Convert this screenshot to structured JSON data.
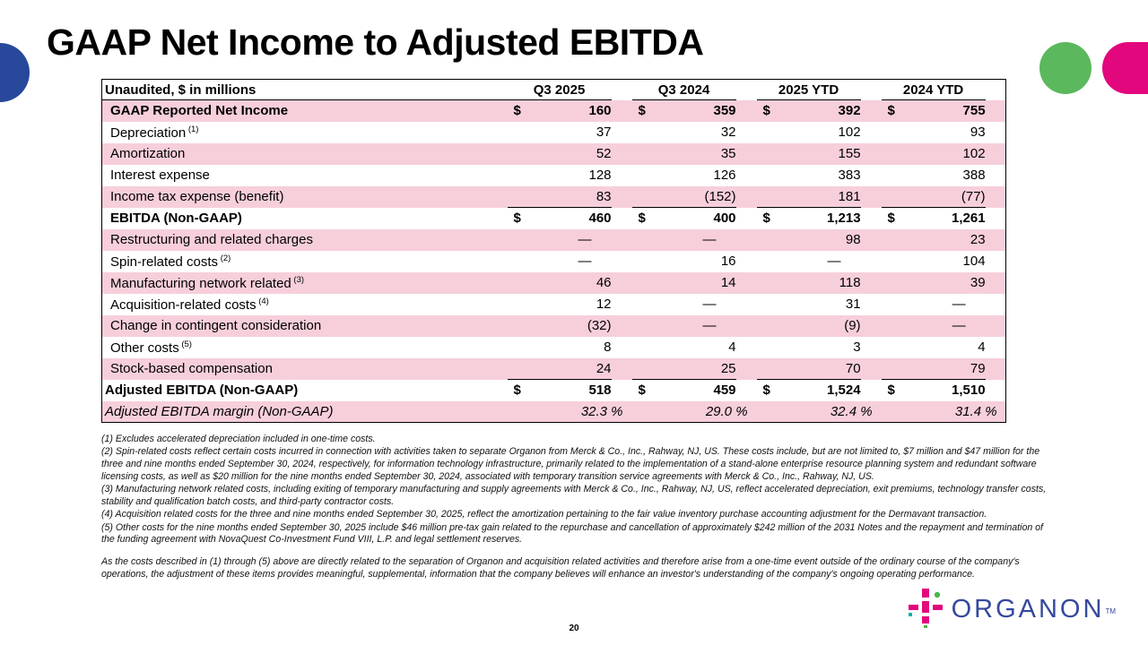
{
  "slide": {
    "title": "GAAP Net Income to Adjusted EBITDA",
    "page_number": "20"
  },
  "colors": {
    "row_pink": "#F7CFDB",
    "accent_blue": "#27489B",
    "accent_green": "#5CB85C",
    "accent_magenta": "#E2077D",
    "logo_navy": "#35499C"
  },
  "table": {
    "unit_label": "Unaudited, $ in millions",
    "columns": [
      "Q3 2025",
      "Q3 2024",
      "2025 YTD",
      "2024 YTD"
    ],
    "currency_symbol": "$",
    "dash": "—",
    "rows": [
      {
        "label": "GAAP Reported Net Income",
        "sup": "",
        "dollar": true,
        "shade": "pink",
        "total": true,
        "sum_line": false,
        "italic": false,
        "flush": false,
        "values": [
          "160",
          "359",
          "392",
          "755"
        ]
      },
      {
        "label": "Depreciation",
        "sup": "(1)",
        "dollar": false,
        "shade": "white",
        "total": false,
        "sum_line": false,
        "italic": false,
        "flush": false,
        "values": [
          "37",
          "32",
          "102",
          "93"
        ]
      },
      {
        "label": "Amortization",
        "sup": "",
        "dollar": false,
        "shade": "pink",
        "total": false,
        "sum_line": false,
        "italic": false,
        "flush": false,
        "values": [
          "52",
          "35",
          "155",
          "102"
        ]
      },
      {
        "label": "Interest expense",
        "sup": "",
        "dollar": false,
        "shade": "white",
        "total": false,
        "sum_line": false,
        "italic": false,
        "flush": false,
        "values": [
          "128",
          "126",
          "383",
          "388"
        ]
      },
      {
        "label": "Income tax expense (benefit)",
        "sup": "",
        "dollar": false,
        "shade": "pink",
        "total": false,
        "sum_line": false,
        "italic": false,
        "flush": false,
        "values": [
          "83",
          "(152)",
          "181",
          "(77)"
        ]
      },
      {
        "label": "EBITDA (Non-GAAP)",
        "sup": "",
        "dollar": true,
        "shade": "white",
        "total": true,
        "sum_line": true,
        "italic": false,
        "flush": false,
        "values": [
          "460",
          "400",
          "1,213",
          "1,261"
        ]
      },
      {
        "label": "Restructuring and related charges",
        "sup": "",
        "dollar": false,
        "shade": "pink",
        "total": false,
        "sum_line": false,
        "italic": false,
        "flush": false,
        "values": [
          "—",
          "—",
          "98",
          "23"
        ]
      },
      {
        "label": "Spin-related costs",
        "sup": "(2)",
        "dollar": false,
        "shade": "white",
        "total": false,
        "sum_line": false,
        "italic": false,
        "flush": false,
        "values": [
          "—",
          "16",
          "—",
          "104"
        ]
      },
      {
        "label": "Manufacturing network related",
        "sup": "(3)",
        "dollar": false,
        "shade": "pink",
        "total": false,
        "sum_line": false,
        "italic": false,
        "flush": false,
        "values": [
          "46",
          "14",
          "118",
          "39"
        ]
      },
      {
        "label": "Acquisition-related costs",
        "sup": "(4)",
        "dollar": false,
        "shade": "white",
        "total": false,
        "sum_line": false,
        "italic": false,
        "flush": false,
        "values": [
          "12",
          "—",
          "31",
          "—"
        ]
      },
      {
        "label": "Change in contingent consideration",
        "sup": "",
        "dollar": false,
        "shade": "pink",
        "total": false,
        "sum_line": false,
        "italic": false,
        "flush": false,
        "values": [
          "(32)",
          "—",
          "(9)",
          "—"
        ]
      },
      {
        "label": "Other costs",
        "sup": "(5)",
        "dollar": false,
        "shade": "white",
        "total": false,
        "sum_line": false,
        "italic": false,
        "flush": false,
        "values": [
          "8",
          "4",
          "3",
          "4"
        ]
      },
      {
        "label": "Stock-based compensation",
        "sup": "",
        "dollar": false,
        "shade": "pink",
        "total": false,
        "sum_line": false,
        "italic": false,
        "flush": false,
        "values": [
          "24",
          "25",
          "70",
          "79"
        ]
      },
      {
        "label": "Adjusted EBITDA (Non-GAAP)",
        "sup": "",
        "dollar": true,
        "shade": "white",
        "total": true,
        "sum_line": true,
        "italic": false,
        "flush": true,
        "values": [
          "518",
          "459",
          "1,524",
          "1,510"
        ]
      },
      {
        "label": "Adjusted EBITDA margin (Non-GAAP)",
        "sup": "",
        "dollar": false,
        "shade": "pink",
        "total": false,
        "sum_line": false,
        "italic": true,
        "flush": true,
        "values": [
          "32.3 %",
          "29.0 %",
          "32.4 %",
          "31.4 %"
        ]
      }
    ]
  },
  "footnotes": [
    "(1) Excludes accelerated depreciation included in one-time costs.",
    "(2) Spin-related costs reflect certain costs incurred in connection with activities taken to separate Organon from Merck & Co., Inc., Rahway, NJ, US. These costs include, but are not limited to, $7 million and $47 million for the three and nine months ended September 30, 2024, respectively, for information technology infrastructure, primarily related to the implementation of a stand-alone enterprise resource planning system and redundant software licensing costs, as well as $20 million for the nine months ended September 30, 2024, associated with temporary transition service agreements with Merck & Co., Inc., Rahway, NJ, US.",
    "(3) Manufacturing network related costs, including exiting of temporary manufacturing and supply agreements with Merck & Co., Inc., Rahway, NJ, US, reflect accelerated depreciation, exit premiums, technology transfer costs, stability and qualification batch costs, and third-party contractor costs.",
    "(4) Acquisition related costs for the three and nine months ended September 30, 2025, reflect the amortization pertaining to the fair value inventory purchase accounting adjustment for the Dermavant transaction.",
    "(5) Other costs for the nine months ended September 30, 2025 include $46 million pre-tax gain related to the repurchase and cancellation of approximately $242 million of the 2031 Notes and the repayment and termination of the funding agreement with NovaQuest Co-Investment Fund VIII, L.P. and legal settlement reserves."
  ],
  "closing_paragraph": "As the costs described in (1) through (5) above are directly related to the separation of Organon and acquisition related activities and therefore arise from a one-time event outside of the ordinary course of the company's operations, the adjustment of these items provides meaningful, supplemental, information that the company believes will enhance an investor's understanding of the company's ongoing operating performance.",
  "logo": {
    "brand": "ORGANON",
    "trademark": "TM"
  }
}
